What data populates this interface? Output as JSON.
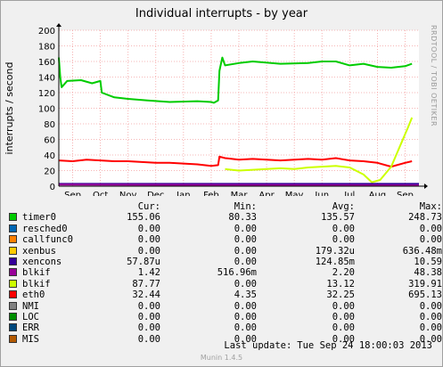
{
  "chart_data": {
    "type": "line",
    "title": "Individual interrupts - by year",
    "ylabel": "interrupts / second",
    "ylim": [
      0,
      200
    ],
    "yticks": [
      0,
      20,
      40,
      60,
      80,
      100,
      120,
      140,
      160,
      180,
      200
    ],
    "month_ticks": [
      "Sep",
      "Oct",
      "Nov",
      "Dec",
      "Jan",
      "Feb",
      "Mar",
      "Apr",
      "May",
      "Jun",
      "Jul",
      "Aug",
      "Sep"
    ],
    "month_positions": [
      0.5,
      1.5,
      2.5,
      3.5,
      4.5,
      5.5,
      6.5,
      7.5,
      8.5,
      9.5,
      10.5,
      11.5,
      12.5
    ],
    "xlim": [
      0,
      13
    ],
    "grid": true,
    "colors": {
      "timer0": "#00cc00",
      "resched0": "#0066b3",
      "callfunc0": "#ff8000",
      "xenbus": "#ffcc00",
      "xencons": "#330099",
      "blkif_a": "#990099",
      "blkif_b": "#ccff00",
      "eth0": "#ff0000",
      "NMI": "#808080",
      "LOC": "#008f00",
      "ERR": "#00487d",
      "MIS": "#b35a00"
    },
    "series": [
      {
        "name": "timer0",
        "color": "#00cc00",
        "x": [
          0,
          0.05,
          0.1,
          0.3,
          0.8,
          1.2,
          1.5,
          1.55,
          2.0,
          2.5,
          3.2,
          4.0,
          5.0,
          5.5,
          5.6,
          5.75,
          5.8,
          5.9,
          6.0,
          6.5,
          7.0,
          8.0,
          9.0,
          9.5,
          10.0,
          10.5,
          11.0,
          11.5,
          12.0,
          12.5,
          12.75
        ],
        "values": [
          165,
          140,
          127,
          135,
          136,
          132,
          135,
          120,
          114,
          112,
          110,
          108,
          109,
          108,
          107,
          110,
          148,
          165,
          155,
          158,
          160,
          157,
          158,
          160,
          160,
          155,
          157,
          153,
          152,
          154,
          157
        ]
      },
      {
        "name": "eth0",
        "color": "#ff0000",
        "x": [
          0,
          0.5,
          1.0,
          1.5,
          2.0,
          2.5,
          3.0,
          3.5,
          4.0,
          4.5,
          5.0,
          5.5,
          5.75,
          5.8,
          6.0,
          6.5,
          7.0,
          7.5,
          8.0,
          8.5,
          9.0,
          9.5,
          10.0,
          10.5,
          11.0,
          11.5,
          12.0,
          12.5,
          12.75
        ],
        "values": [
          33,
          32,
          34,
          33,
          32,
          32,
          31,
          30,
          30,
          29,
          28,
          26,
          27,
          38,
          36,
          34,
          35,
          34,
          33,
          34,
          35,
          34,
          36,
          33,
          32,
          30,
          25,
          30,
          32
        ]
      },
      {
        "name": "blkif",
        "color": "#ccff00",
        "x": [
          6.0,
          6.5,
          7.0,
          7.5,
          8.0,
          8.5,
          9.0,
          9.5,
          10.0,
          10.5,
          11.0,
          11.3,
          11.6,
          12.0,
          12.3,
          12.6,
          12.75
        ],
        "values": [
          22,
          20,
          21,
          22,
          23,
          22,
          24,
          25,
          26,
          24,
          15,
          5,
          8,
          25,
          50,
          75,
          88
        ]
      },
      {
        "name": "xencons",
        "color": "#330099",
        "x": [
          0,
          13
        ],
        "values": [
          3,
          3
        ]
      },
      {
        "name": "blkif",
        "color": "#990099",
        "x": [
          0,
          13
        ],
        "values": [
          2,
          1
        ]
      }
    ]
  },
  "side_label": "RRDTOOL / TOBI OETIKER",
  "legend": {
    "headers": {
      "cur": "Cur:",
      "min": "Min:",
      "avg": "Avg:",
      "max": "Max:"
    },
    "rows": [
      {
        "name": "timer0",
        "color": "#00cc00",
        "cur": "155.06",
        "min": "80.33",
        "avg": "135.57",
        "max": "248.73"
      },
      {
        "name": "resched0",
        "color": "#0066b3",
        "cur": "0.00",
        "min": "0.00",
        "avg": "0.00",
        "max": "0.00"
      },
      {
        "name": "callfunc0",
        "color": "#ff8000",
        "cur": "0.00",
        "min": "0.00",
        "avg": "0.00",
        "max": "0.00"
      },
      {
        "name": "xenbus",
        "color": "#ffcc00",
        "cur": "0.00",
        "min": "0.00",
        "avg": "179.32u",
        "max": "636.48m"
      },
      {
        "name": "xencons",
        "color": "#330099",
        "cur": "57.87u",
        "min": "0.00",
        "avg": "124.85m",
        "max": "10.59"
      },
      {
        "name": "blkif",
        "color": "#990099",
        "cur": "1.42",
        "min": "516.96m",
        "avg": "2.20",
        "max": "48.38"
      },
      {
        "name": "blkif",
        "color": "#ccff00",
        "cur": "87.77",
        "min": "0.00",
        "avg": "13.12",
        "max": "319.91"
      },
      {
        "name": "eth0",
        "color": "#ff0000",
        "cur": "32.44",
        "min": "4.35",
        "avg": "32.25",
        "max": "695.13"
      },
      {
        "name": "NMI",
        "color": "#808080",
        "cur": "0.00",
        "min": "0.00",
        "avg": "0.00",
        "max": "0.00"
      },
      {
        "name": "LOC",
        "color": "#008f00",
        "cur": "0.00",
        "min": "0.00",
        "avg": "0.00",
        "max": "0.00"
      },
      {
        "name": "ERR",
        "color": "#00487d",
        "cur": "0.00",
        "min": "0.00",
        "avg": "0.00",
        "max": "0.00"
      },
      {
        "name": "MIS",
        "color": "#b35a00",
        "cur": "0.00",
        "min": "0.00",
        "avg": "0.00",
        "max": "0.00"
      }
    ]
  },
  "last_update": {
    "label": "Last update:",
    "value": "Tue Sep 24 18:00:03 2013"
  },
  "version": "Munin 1.4.5"
}
